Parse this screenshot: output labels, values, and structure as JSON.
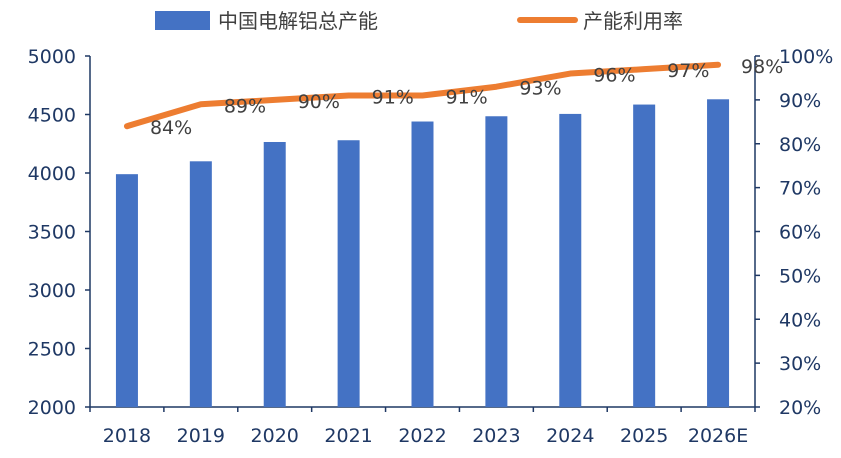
{
  "chart_data": {
    "type": "bar+line",
    "title": "",
    "categories": [
      "2018",
      "2019",
      "2020",
      "2021",
      "2022",
      "2023",
      "2024",
      "2025",
      "2026E"
    ],
    "series": [
      {
        "name": "中国电解铝总产能",
        "type": "bar",
        "axis": "left",
        "color": "#4472C4",
        "values": [
          3990,
          4100,
          4265,
          4280,
          4440,
          4485,
          4505,
          4585,
          4630
        ]
      },
      {
        "name": "产能利用率",
        "type": "line",
        "axis": "right",
        "color": "#ED7D31",
        "values": [
          84,
          89,
          90,
          91,
          91,
          93,
          96,
          97,
          98
        ],
        "labels": [
          "84%",
          "89%",
          "90%",
          "91%",
          "91%",
          "93%",
          "96%",
          "97%",
          "98%"
        ]
      }
    ],
    "y_left": {
      "min": 2000,
      "max": 5000,
      "ticks": [
        2000,
        2500,
        3000,
        3500,
        4000,
        4500,
        5000
      ]
    },
    "y_right": {
      "min": 20,
      "max": 100,
      "ticks": [
        "20%",
        "30%",
        "40%",
        "50%",
        "60%",
        "70%",
        "80%",
        "90%",
        "100%"
      ]
    },
    "legend": "top",
    "grid": false,
    "axis_color": "#1F3864",
    "label_color": "#1F3864"
  }
}
